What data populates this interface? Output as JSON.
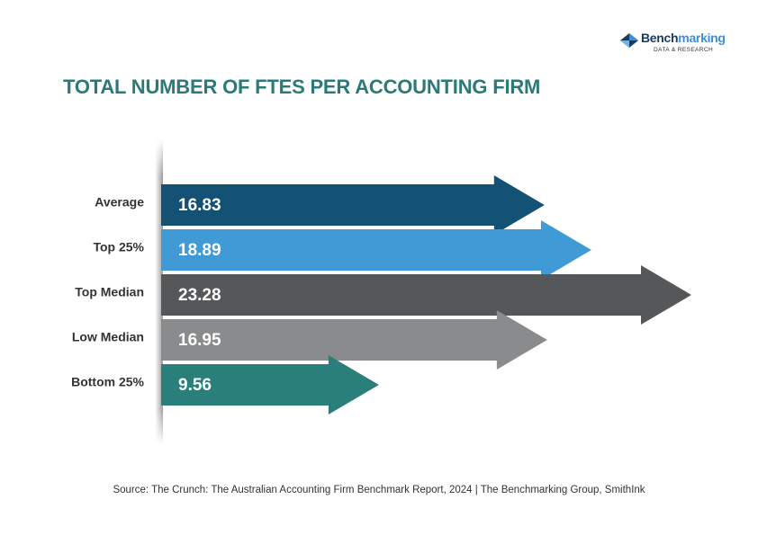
{
  "logo": {
    "name_part1": "Bench",
    "name_part2": "marking",
    "tagline": "DATA & RESEARCH",
    "colors": {
      "dark": "#1d3b5c",
      "light": "#3f8fd6"
    }
  },
  "title": "TOTAL NUMBER OF FTES PER ACCOUNTING FIRM",
  "source": "Source: The Crunch: The Australian Accounting Firm Benchmark Report, 2024 | The Benchmarking Group, SmithInk",
  "chart_data": {
    "type": "bar",
    "orientation": "horizontal",
    "title": "TOTAL NUMBER OF FTES PER ACCOUNTING FIRM",
    "categories": [
      "Average",
      "Top 25%",
      "Top Median",
      "Low Median",
      "Bottom 25%"
    ],
    "values": [
      16.83,
      18.89,
      23.28,
      16.95,
      9.56
    ],
    "value_labels": [
      "16.83",
      "18.89",
      "23.28",
      "16.95",
      "9.56"
    ],
    "colors": [
      "#135275",
      "#3f9ad6",
      "#555759",
      "#898b8d",
      "#2b7f7a"
    ],
    "xlim": [
      0,
      23.28
    ],
    "grid": false,
    "legend": "none"
  }
}
